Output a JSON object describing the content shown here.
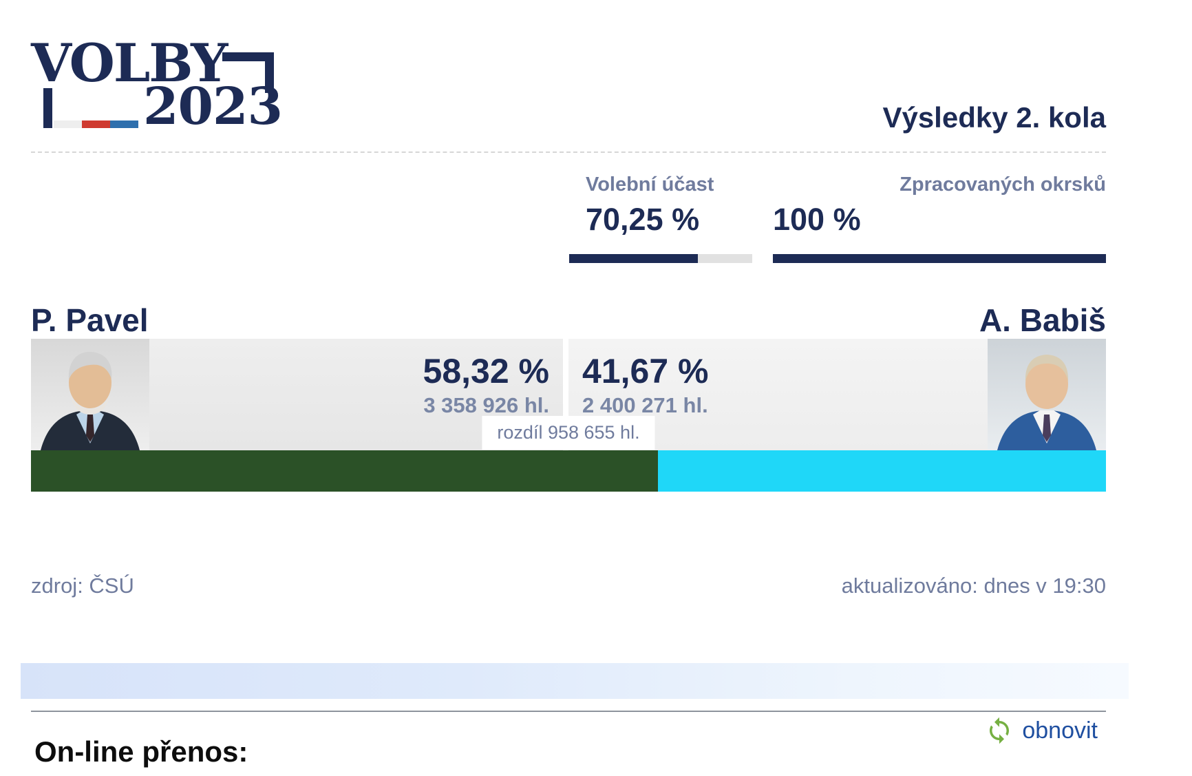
{
  "logo": {
    "word": "VOLBY",
    "year": "2023"
  },
  "header": {
    "title": "Výsledky 2. kola"
  },
  "stats": {
    "turnout": {
      "label": "Volební účast",
      "value": "70,25 %",
      "percent": 70.25
    },
    "precincts": {
      "label": "Zpracovaných okrsků",
      "value": "100 %",
      "percent": 100
    }
  },
  "results": {
    "left": {
      "name": "P. Pavel",
      "percent": "58,32 %",
      "percent_value": 58.32,
      "votes": "3 358 926 hl.",
      "bar_color": "#2b5127"
    },
    "right": {
      "name": "A. Babiš",
      "percent": "41,67 %",
      "percent_value": 41.67,
      "votes": "2 400 271 hl.",
      "bar_color": "#1fd7f8"
    },
    "difference": "rozdíl 958 655 hl."
  },
  "meta": {
    "source": "zdroj: ČSÚ",
    "updated": "aktualizováno: dnes v 19:30"
  },
  "live": {
    "heading": "On-line přenos:",
    "refresh_label": "obnovit"
  },
  "icons": {
    "refresh": "refresh-icon"
  },
  "colors": {
    "navy": "#1d2b55",
    "label_blue_gray": "#6f7b9d",
    "green": "#2b5127",
    "cyan": "#1fd7f8",
    "link_blue": "#1f4fa0",
    "icon_green": "#76b043",
    "flag_white": "#eeeeee",
    "flag_red": "#cf3a30",
    "flag_blue": "#2e6fad",
    "bar_track": "#e1e1e1"
  },
  "chart_data": {
    "type": "bar",
    "title": "Výsledky 2. kola",
    "categories": [
      "P. Pavel",
      "A. Babiš"
    ],
    "values": [
      58.32,
      41.67
    ],
    "votes": [
      3358926,
      2400271
    ],
    "difference_votes": 958655,
    "turnout_percent": 70.25,
    "precincts_processed_percent": 100,
    "colors": [
      "#2b5127",
      "#1fd7f8"
    ]
  }
}
